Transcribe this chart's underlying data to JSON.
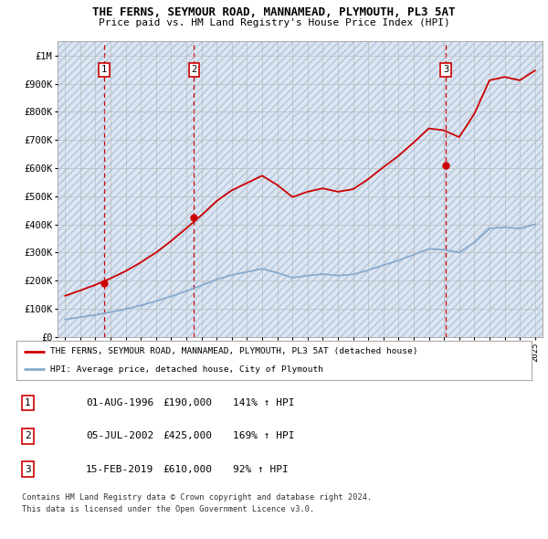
{
  "title": "THE FERNS, SEYMOUR ROAD, MANNAMEAD, PLYMOUTH, PL3 5AT",
  "subtitle": "Price paid vs. HM Land Registry's House Price Index (HPI)",
  "ylabel_ticks": [
    "£0",
    "£100K",
    "£200K",
    "£300K",
    "£400K",
    "£500K",
    "£600K",
    "£700K",
    "£800K",
    "£900K",
    "£1M"
  ],
  "ytick_values": [
    0,
    100000,
    200000,
    300000,
    400000,
    500000,
    600000,
    700000,
    800000,
    900000,
    1000000
  ],
  "xlim": [
    1993.5,
    2025.5
  ],
  "ylim": [
    0,
    1050000
  ],
  "xticks": [
    1994,
    1995,
    1996,
    1997,
    1998,
    1999,
    2000,
    2001,
    2002,
    2003,
    2004,
    2005,
    2006,
    2007,
    2008,
    2009,
    2010,
    2011,
    2012,
    2013,
    2014,
    2015,
    2016,
    2017,
    2018,
    2019,
    2020,
    2021,
    2022,
    2023,
    2024,
    2025
  ],
  "sales": [
    {
      "date": 1996.58,
      "price": 190000,
      "label": "1"
    },
    {
      "date": 2002.5,
      "price": 425000,
      "label": "2"
    },
    {
      "date": 2019.12,
      "price": 610000,
      "label": "3"
    }
  ],
  "sale_line_color": "#cc0000",
  "hpi_line_color": "#88aacc",
  "grid_color": "#cccccc",
  "dashed_line_color": "#cc0000",
  "bg_color": "#dce6f1",
  "legend_text_1": "THE FERNS, SEYMOUR ROAD, MANNAMEAD, PLYMOUTH, PL3 5AT (detached house)",
  "legend_text_2": "HPI: Average price, detached house, City of Plymouth",
  "table_entries": [
    {
      "num": "1",
      "date": "01-AUG-1996",
      "price": "£190,000",
      "hpi": "141% ↑ HPI"
    },
    {
      "num": "2",
      "date": "05-JUL-2002",
      "price": "£425,000",
      "hpi": "169% ↑ HPI"
    },
    {
      "num": "3",
      "date": "15-FEB-2019",
      "price": "£610,000",
      "hpi": "92% ↑ HPI"
    }
  ],
  "footer_line1": "Contains HM Land Registry data © Crown copyright and database right 2024.",
  "footer_line2": "This data is licensed under the Open Government Licence v3.0.",
  "hpi_years": [
    1994,
    1995,
    1996,
    1997,
    1998,
    1999,
    2000,
    2001,
    2002,
    2003,
    2004,
    2005,
    2006,
    2007,
    2008,
    2009,
    2010,
    2011,
    2012,
    2013,
    2014,
    2015,
    2016,
    2017,
    2018,
    2019,
    2020,
    2021,
    2022,
    2023,
    2024,
    2025
  ],
  "hpi_raw": [
    62000,
    70000,
    78000,
    88000,
    99000,
    112000,
    127000,
    144000,
    163000,
    183000,
    204000,
    220000,
    231000,
    242000,
    228000,
    210000,
    218000,
    223000,
    218000,
    222000,
    237000,
    255000,
    272000,
    292000,
    313000,
    310000,
    300000,
    335000,
    385000,
    390000,
    385000,
    400000
  ],
  "prop_hpi": [
    146000,
    165000,
    185000,
    208000,
    234000,
    265000,
    300000,
    341000,
    386000,
    433000,
    483000,
    521000,
    547000,
    573000,
    540000,
    497000,
    516000,
    528000,
    516000,
    525000,
    561000,
    603000,
    644000,
    691000,
    741000,
    734000,
    710000,
    793000,
    912000,
    924000,
    912000,
    947000
  ]
}
